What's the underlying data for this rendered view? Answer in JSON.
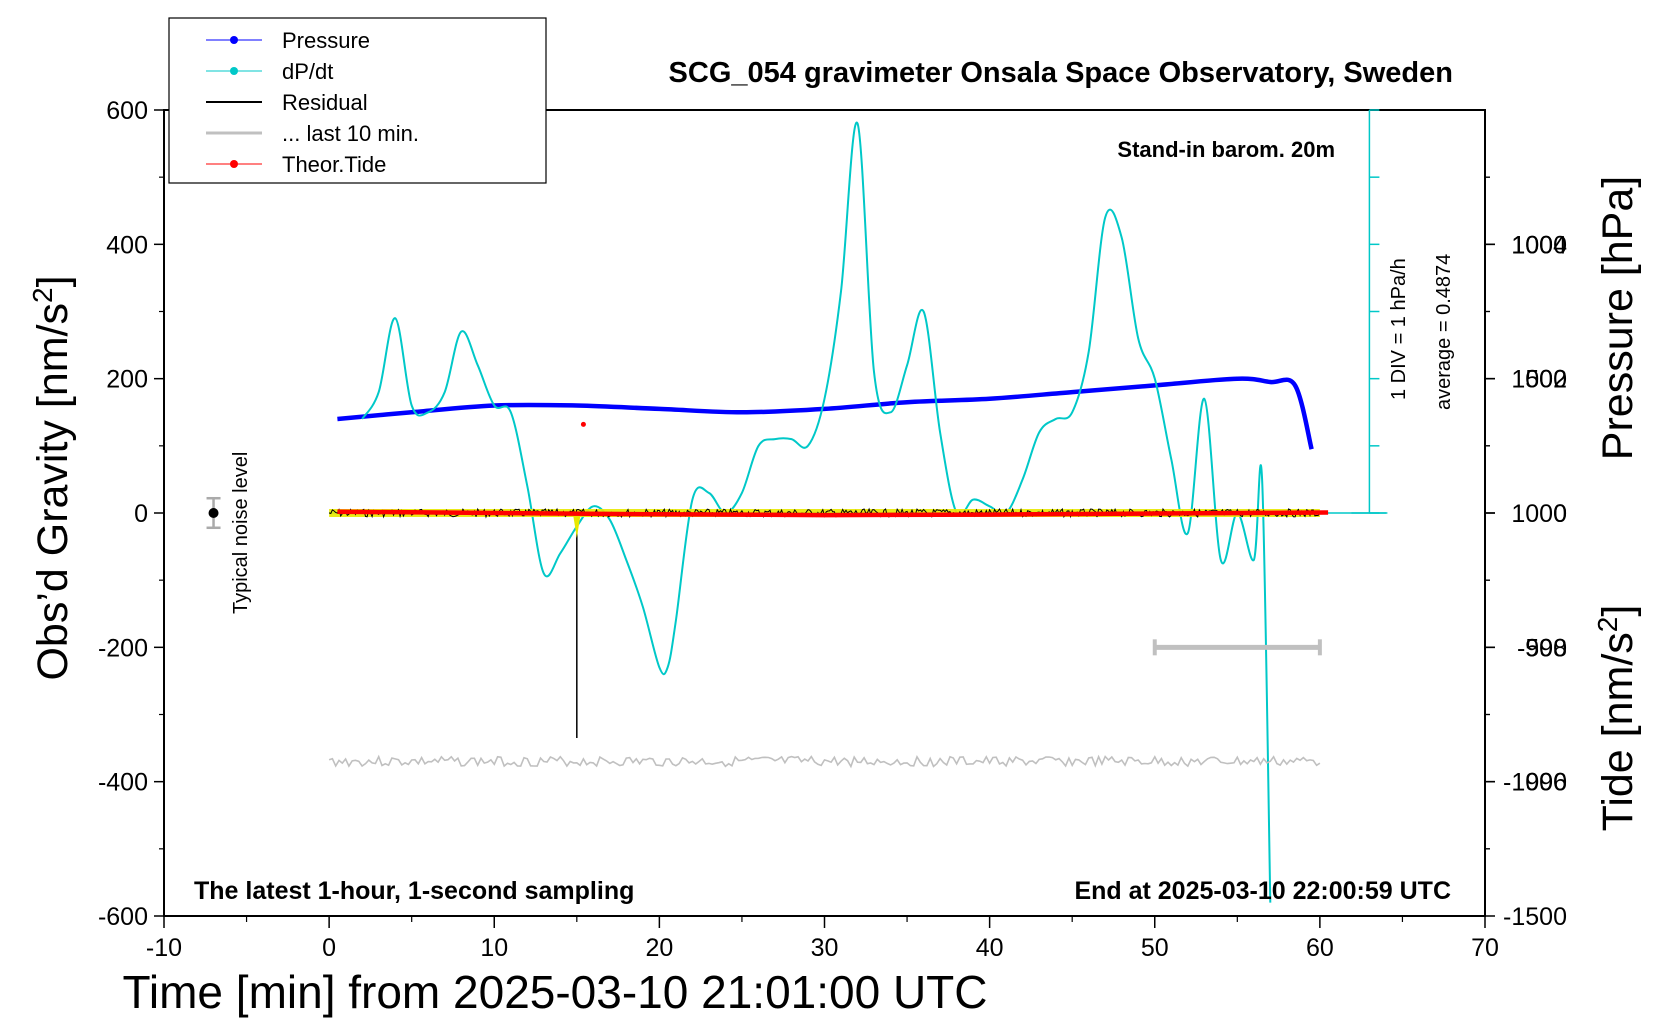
{
  "chart_data": {
    "type": "line",
    "title": "SCG_054 gravimeter Onsala Space Observatory, Sweden",
    "xlabel": "Time [min] from 2025-03-10 21:01:00 UTC",
    "ylabel": "Obs'd Gravity [nm/s2]",
    "ylabel_main": "Obs’d Gravity [nm/s",
    "ylabel_sup": "2",
    "ylabel_tail": "]",
    "y2label": "Pressure [hPa]",
    "y3label_main": "Tide [nm/s",
    "y3label_sup": "2",
    "y3label_tail": "]",
    "xlim": [
      -10,
      70
    ],
    "ylim": [
      -600,
      600
    ],
    "pressure_lim": [
      994,
      1006
    ],
    "tide_lim": [
      -1500,
      1500
    ],
    "x_ticks": [
      "-10",
      "0",
      "10",
      "20",
      "30",
      "40",
      "50",
      "60",
      "70"
    ],
    "y_ticks": [
      "600",
      "400",
      "200",
      "0",
      "-200",
      "-400",
      "-600"
    ],
    "pressure_ticks": [
      "1004",
      "1002",
      "1000",
      "998",
      "996"
    ],
    "tide_ticks": [
      "1000",
      "500",
      "0",
      "-500",
      "-1000",
      "-1500"
    ],
    "annotations": {
      "stand_in": "Stand-in barom. 20m",
      "latest": "The latest 1-hour, 1-second sampling",
      "end_at": "End at 2025-03-10 22:00:59 UTC",
      "noise": "Typical noise level",
      "div": "1 DIV = 1 hPa/h",
      "average": "average = 0.4874"
    },
    "legend": [
      {
        "name": "Pressure",
        "color": "#0000ff",
        "marker": true
      },
      {
        "name": "dP/dt",
        "color": "#00c8c8",
        "marker": true
      },
      {
        "name": "Residual",
        "color": "#000000",
        "marker": false
      },
      {
        "name": "... last 10 min.",
        "color": "#c0c0c0",
        "marker": false
      },
      {
        "name": "Theor.Tide",
        "color": "#ff0000",
        "marker": true
      }
    ],
    "series": [
      {
        "name": "Pressure",
        "axis": "pressure",
        "unit": "hPa",
        "color": "#0000ff",
        "x": [
          0.5,
          5,
          10,
          15,
          20,
          25,
          30,
          35,
          40,
          45,
          50,
          55,
          57,
          58.5,
          59.5
        ],
        "values": [
          1001.4,
          1001.5,
          1001.6,
          1001.6,
          1001.55,
          1001.5,
          1001.55,
          1001.65,
          1001.7,
          1001.8,
          1001.9,
          1002.0,
          1001.95,
          1001.9,
          1000.95
        ]
      },
      {
        "name": "dP/dt",
        "axis": "dpdt",
        "unit": "hPa/h",
        "color": "#00c8c8",
        "x": [
          2,
          3,
          4,
          5,
          6,
          7,
          8,
          9,
          10,
          11,
          12,
          13,
          14,
          15,
          16,
          17,
          18,
          19,
          20,
          20.5,
          21,
          22,
          23,
          24,
          25,
          26,
          27,
          28,
          29,
          30,
          31,
          32,
          33,
          34,
          35,
          36,
          37,
          38,
          39,
          40,
          41,
          42,
          43,
          44,
          45,
          46,
          47,
          48,
          49,
          50,
          51,
          52,
          53,
          54,
          55,
          56,
          56.5,
          57
        ],
        "values": [
          1.4,
          1.8,
          2.9,
          1.6,
          1.5,
          1.8,
          2.7,
          2.2,
          1.6,
          1.5,
          0.4,
          -0.9,
          -0.6,
          -0.2,
          0.1,
          -0.1,
          -0.7,
          -1.4,
          -2.3,
          -2.3,
          -1.6,
          0.2,
          0.3,
          0.0,
          0.3,
          1.0,
          1.1,
          1.1,
          1.0,
          1.7,
          3.3,
          5.8,
          2.1,
          1.5,
          2.2,
          3.0,
          1.2,
          0.0,
          0.2,
          0.1,
          0.0,
          0.5,
          1.2,
          1.4,
          1.5,
          2.4,
          4.4,
          4.1,
          2.6,
          2.0,
          0.8,
          -0.3,
          1.7,
          -0.7,
          0.0,
          -0.7,
          0.5,
          -5.8
        ]
      },
      {
        "name": "Residual",
        "axis": "gravity",
        "unit": "nm/s2",
        "color": "#000000",
        "x": [
          0,
          14.9,
          15.0,
          15.1,
          60
        ],
        "values": [
          0,
          0,
          -335,
          0,
          0
        ]
      },
      {
        "name": "... last 10 min.",
        "axis": "gravity",
        "unit": "nm/s2",
        "color": "#c0c0c0",
        "x": [
          0,
          60
        ],
        "values": [
          -370,
          -370
        ]
      },
      {
        "name": "Theor.Tide",
        "axis": "tide",
        "unit": "nm/s2",
        "color": "#ff0000",
        "x": [
          0.5,
          10,
          20,
          30,
          40,
          50,
          60.5
        ],
        "values": [
          5,
          0,
          -5,
          -8,
          -6,
          -2,
          2
        ]
      }
    ],
    "dpdt_baseline_hPa": 1000,
    "hpa_per_div": 1,
    "tide_outlier": {
      "x": 15.4,
      "value": 330
    },
    "noise_bar": {
      "x": -7,
      "center": 0,
      "low": -22,
      "high": 22
    },
    "last10_bar": {
      "from": 50,
      "to": 60,
      "gravity": -200
    }
  }
}
